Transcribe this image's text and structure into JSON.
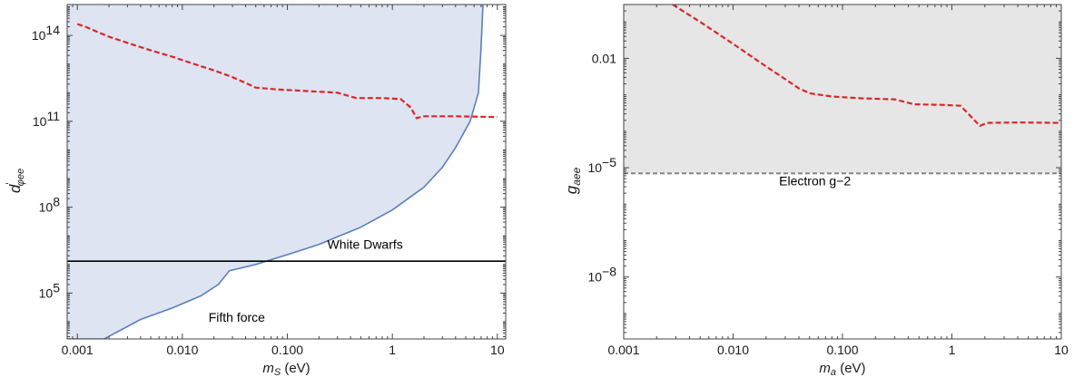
{
  "chart_data": [
    {
      "type": "line",
      "xscale": "log",
      "yscale": "log",
      "xlabel": {
        "main": "m",
        "sub": "S",
        "suffix": " (eV)"
      },
      "ylabel": {
        "main": "d",
        "sup": "'",
        "sub": "φee"
      },
      "xlim": [
        0.0008,
        12
      ],
      "ylim": [
        2500,
        1200000000000000.0
      ],
      "xticks": [
        {
          "value": 0.001,
          "label": "0.001"
        },
        {
          "value": 0.01,
          "label": "0.010"
        },
        {
          "value": 0.1,
          "label": "0.100"
        },
        {
          "value": 1,
          "label": "1"
        },
        {
          "value": 10,
          "label": "10"
        }
      ],
      "yticks": [
        {
          "value": 100000,
          "mant": "10",
          "exp": "5"
        },
        {
          "value": 100000000,
          "mant": "10",
          "exp": "8"
        },
        {
          "value": 100000000000,
          "mant": "10",
          "exp": "11"
        },
        {
          "value": 100000000000000,
          "mant": "10",
          "exp": "14"
        }
      ],
      "series": [
        {
          "role": "excluded-region",
          "fill": "#dee4f1",
          "stroke": "#5b7fbd",
          "points": [
            [
              0.0008,
              2500
            ],
            [
              0.0018,
              2500
            ],
            [
              0.004,
              12000
            ],
            [
              0.008,
              30000
            ],
            [
              0.015,
              80000
            ],
            [
              0.022,
              200000
            ],
            [
              0.028,
              600000
            ],
            [
              0.05,
              1000000
            ],
            [
              0.1,
              2200000
            ],
            [
              0.2,
              5000000
            ],
            [
              0.5,
              20000000
            ],
            [
              1.0,
              80000000
            ],
            [
              2.0,
              500000000
            ],
            [
              3.0,
              2500000000
            ],
            [
              4.0,
              12000000000
            ],
            [
              5.5,
              100000000000
            ],
            [
              6.6,
              1000000000000
            ],
            [
              7.0,
              40000000000000
            ],
            [
              7.3,
              1200000000000000.0
            ]
          ]
        },
        {
          "role": "projection",
          "stroke": "#d9262a",
          "dashed": true,
          "points": [
            [
              0.001,
              250000000000000.0
            ],
            [
              0.0012,
              200000000000000.0
            ],
            [
              0.0015,
              140000000000000.0
            ],
            [
              0.002,
              90000000000000.0
            ],
            [
              0.003,
              55000000000000.0
            ],
            [
              0.005,
              30000000000000.0
            ],
            [
              0.008,
              18000000000000.0
            ],
            [
              0.012,
              11000000000000.0
            ],
            [
              0.02,
              6000000000000.0
            ],
            [
              0.03,
              3500000000000.0
            ],
            [
              0.04,
              2200000000000.0
            ],
            [
              0.05,
              1500000000000.0
            ],
            [
              0.08,
              1300000000000.0
            ],
            [
              0.15,
              1150000000000.0
            ],
            [
              0.3,
              1000000000000.0
            ],
            [
              0.45,
              650000000000.0
            ],
            [
              0.8,
              650000000000.0
            ],
            [
              1.2,
              600000000000.0
            ],
            [
              1.5,
              300000000000.0
            ],
            [
              1.7,
              130000000000.0
            ],
            [
              2.0,
              150000000000.0
            ],
            [
              4,
              150000000000.0
            ],
            [
              10,
              140000000000.0
            ]
          ]
        },
        {
          "role": "bound-line",
          "stroke": "#000000",
          "points": [
            [
              0.0008,
              1300000
            ],
            [
              12,
              1300000
            ]
          ]
        }
      ],
      "annotations": [
        {
          "text": "White Dwarfs",
          "x": 0.55,
          "y": 3500000
        },
        {
          "text": "Fifth force",
          "x": 0.033,
          "y": 10000
        }
      ]
    },
    {
      "type": "line",
      "xscale": "log",
      "yscale": "log",
      "xlabel": {
        "main": "m",
        "sub": "a",
        "suffix": " (eV)"
      },
      "ylabel": {
        "main": "g",
        "sub": "aee"
      },
      "xlim": [
        0.001,
        10
      ],
      "ylim": [
        2e-10,
        0.3
      ],
      "xticks": [
        {
          "value": 0.001,
          "label": "0.001"
        },
        {
          "value": 0.01,
          "label": "0.010"
        },
        {
          "value": 0.1,
          "label": "0.100"
        },
        {
          "value": 1,
          "label": "1"
        },
        {
          "value": 10,
          "label": "10"
        }
      ],
      "yticks": [
        {
          "value": 1e-08,
          "mant": "10",
          "exp": "−8"
        },
        {
          "value": 1e-05,
          "mant": "10",
          "exp": "−5"
        },
        {
          "value": 0.01,
          "mant": "0.01",
          "exp": ""
        }
      ],
      "series": [
        {
          "role": "excluded-region",
          "fill": "#e6e6e6",
          "points": [
            [
              0.001,
              7e-06
            ],
            [
              10,
              7e-06
            ],
            [
              10,
              0.3
            ],
            [
              0.001,
              0.3
            ]
          ]
        },
        {
          "role": "bound-line",
          "stroke": "#7f7f7f",
          "dashed": true,
          "points": [
            [
              0.001,
              7e-06
            ],
            [
              10,
              7e-06
            ]
          ]
        },
        {
          "role": "projection",
          "stroke": "#d9262a",
          "dashed": true,
          "points": [
            [
              0.0028,
              0.3
            ],
            [
              0.005,
              0.1
            ],
            [
              0.01,
              0.025
            ],
            [
              0.02,
              0.006
            ],
            [
              0.04,
              0.0015
            ],
            [
              0.05,
              0.0011
            ],
            [
              0.08,
              0.0009
            ],
            [
              0.15,
              0.0008
            ],
            [
              0.3,
              0.00075
            ],
            [
              0.45,
              0.00055
            ],
            [
              0.8,
              0.00053
            ],
            [
              1.2,
              0.0005
            ],
            [
              1.5,
              0.00025
            ],
            [
              1.8,
              0.00014
            ],
            [
              2.1,
              0.00017
            ],
            [
              4,
              0.000175
            ],
            [
              10,
              0.00017
            ]
          ]
        }
      ],
      "annotations": [
        {
          "text": "Electron g−2",
          "x": 0.056,
          "y": 3.3e-06
        }
      ]
    }
  ]
}
